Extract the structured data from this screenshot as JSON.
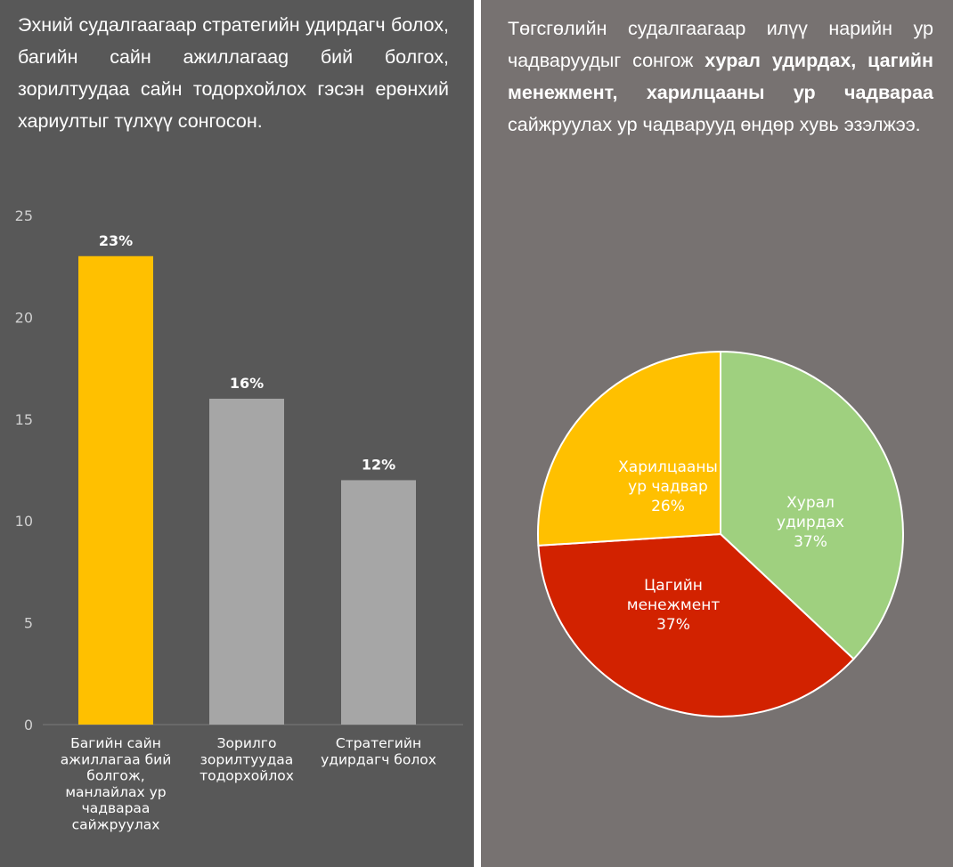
{
  "left": {
    "description": "Эхний судалгаагаар стратегийн удирдагч болох, багийн сайн ажиллагаag бий болгох, зорилтуудаа сайн тодорхойлох гэсэн ерөнхий хариултыг түлхүү сонгосон."
  },
  "right": {
    "description_parts": [
      {
        "text": "Төгсгөлийн судалгаагаар илүү нарийн ур чадваруудыг сонгож ",
        "bold": false
      },
      {
        "text": "хурал удирдах, цагийн менежмент, харилцааны ур чадвараа",
        "bold": true
      },
      {
        "text": " сайжруулах ур чадварууд өндөр хувь эзэлжээ.",
        "bold": false
      }
    ]
  },
  "chart_data": [
    {
      "type": "bar",
      "title": "",
      "xlabel": "",
      "ylabel": "",
      "ylim": [
        0,
        25
      ],
      "yticks": [
        0,
        5,
        10,
        15,
        20,
        25
      ],
      "grid": false,
      "categories": [
        [
          "Багийн сайн",
          "ажиллагаа бий",
          "болгож,",
          "манлайлах ур",
          "чадвараа",
          "сайжруулах"
        ],
        [
          "Зорилго",
          "зорилтуудаа",
          "тодорхойлох"
        ],
        [
          "Стратегийн",
          "удирдагч болох"
        ]
      ],
      "values": [
        23,
        16,
        12
      ],
      "value_labels": [
        "23%",
        "16%",
        "12%"
      ],
      "colors": [
        "#FFC000",
        "#A6A6A6",
        "#A6A6A6"
      ]
    },
    {
      "type": "pie",
      "slices": [
        {
          "label": [
            "Хурал",
            "удирдах"
          ],
          "value": 37,
          "value_label": "37%",
          "color": "#9FD07F",
          "text_color": "#ffffff"
        },
        {
          "label": [
            "Цагийн",
            "менежмент"
          ],
          "value": 37,
          "value_label": "37%",
          "color": "#D22200",
          "text_color": "#ffffff"
        },
        {
          "label": [
            "Харилцааны",
            "ур чадвар"
          ],
          "value": 26,
          "value_label": "26%",
          "color": "#FFC000",
          "text_color": "#ffffff"
        }
      ],
      "legend": "none"
    }
  ]
}
